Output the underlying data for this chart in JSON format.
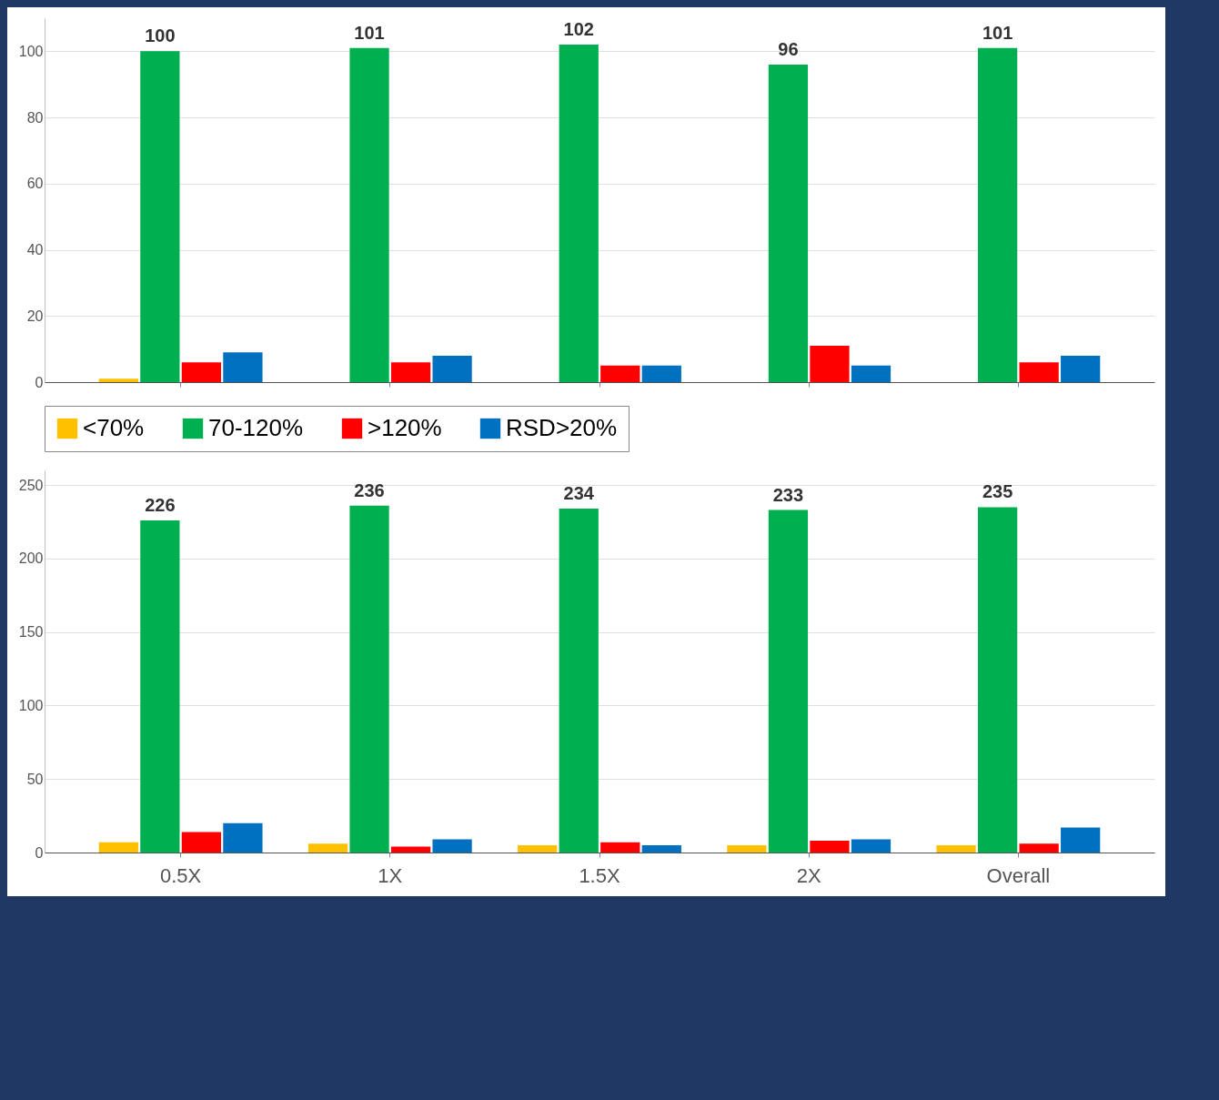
{
  "chart_data": [
    {
      "type": "bar",
      "categories": [
        null,
        null,
        null,
        null,
        null
      ],
      "tick_labels": "y",
      "ylim": [
        0,
        110
      ],
      "yticks": [
        0,
        20,
        40,
        60,
        80,
        100
      ],
      "grid": "y",
      "legend": "bottom",
      "series": [
        {
          "name": "<70%",
          "color": "#ffc000",
          "values": [
            1,
            0,
            0,
            0,
            0
          ]
        },
        {
          "name": "70-120%",
          "color": "#00b050",
          "values": [
            100,
            101,
            102,
            96,
            101
          ],
          "value_labels": [
            "100",
            "101",
            "102",
            "96",
            "101"
          ]
        },
        {
          "name": ">120%",
          "color": "#ff0000",
          "values": [
            6,
            6,
            5,
            11,
            6
          ]
        },
        {
          "name": "RSD>20%",
          "color": "#0070c0",
          "values": [
            9,
            8,
            5,
            5,
            8
          ]
        }
      ]
    },
    {
      "type": "bar",
      "categories": [
        "0.5X",
        "1X",
        "1.5X",
        "2X",
        "Overall"
      ],
      "ylim": [
        0,
        260
      ],
      "yticks": [
        0,
        50,
        100,
        150,
        200,
        250
      ],
      "grid": "y",
      "series": [
        {
          "color": "#ffc000",
          "values": [
            7,
            6,
            5,
            5,
            5
          ]
        },
        {
          "color": "#00b050",
          "values": [
            226,
            236,
            234,
            233,
            235
          ],
          "value_labels": [
            "226",
            "236",
            "234",
            "233",
            "235"
          ]
        },
        {
          "color": "#ff0000",
          "values": [
            14,
            4,
            7,
            8,
            6
          ]
        },
        {
          "color": "#0070c0",
          "values": [
            20,
            9,
            5,
            9,
            17
          ]
        }
      ]
    }
  ]
}
